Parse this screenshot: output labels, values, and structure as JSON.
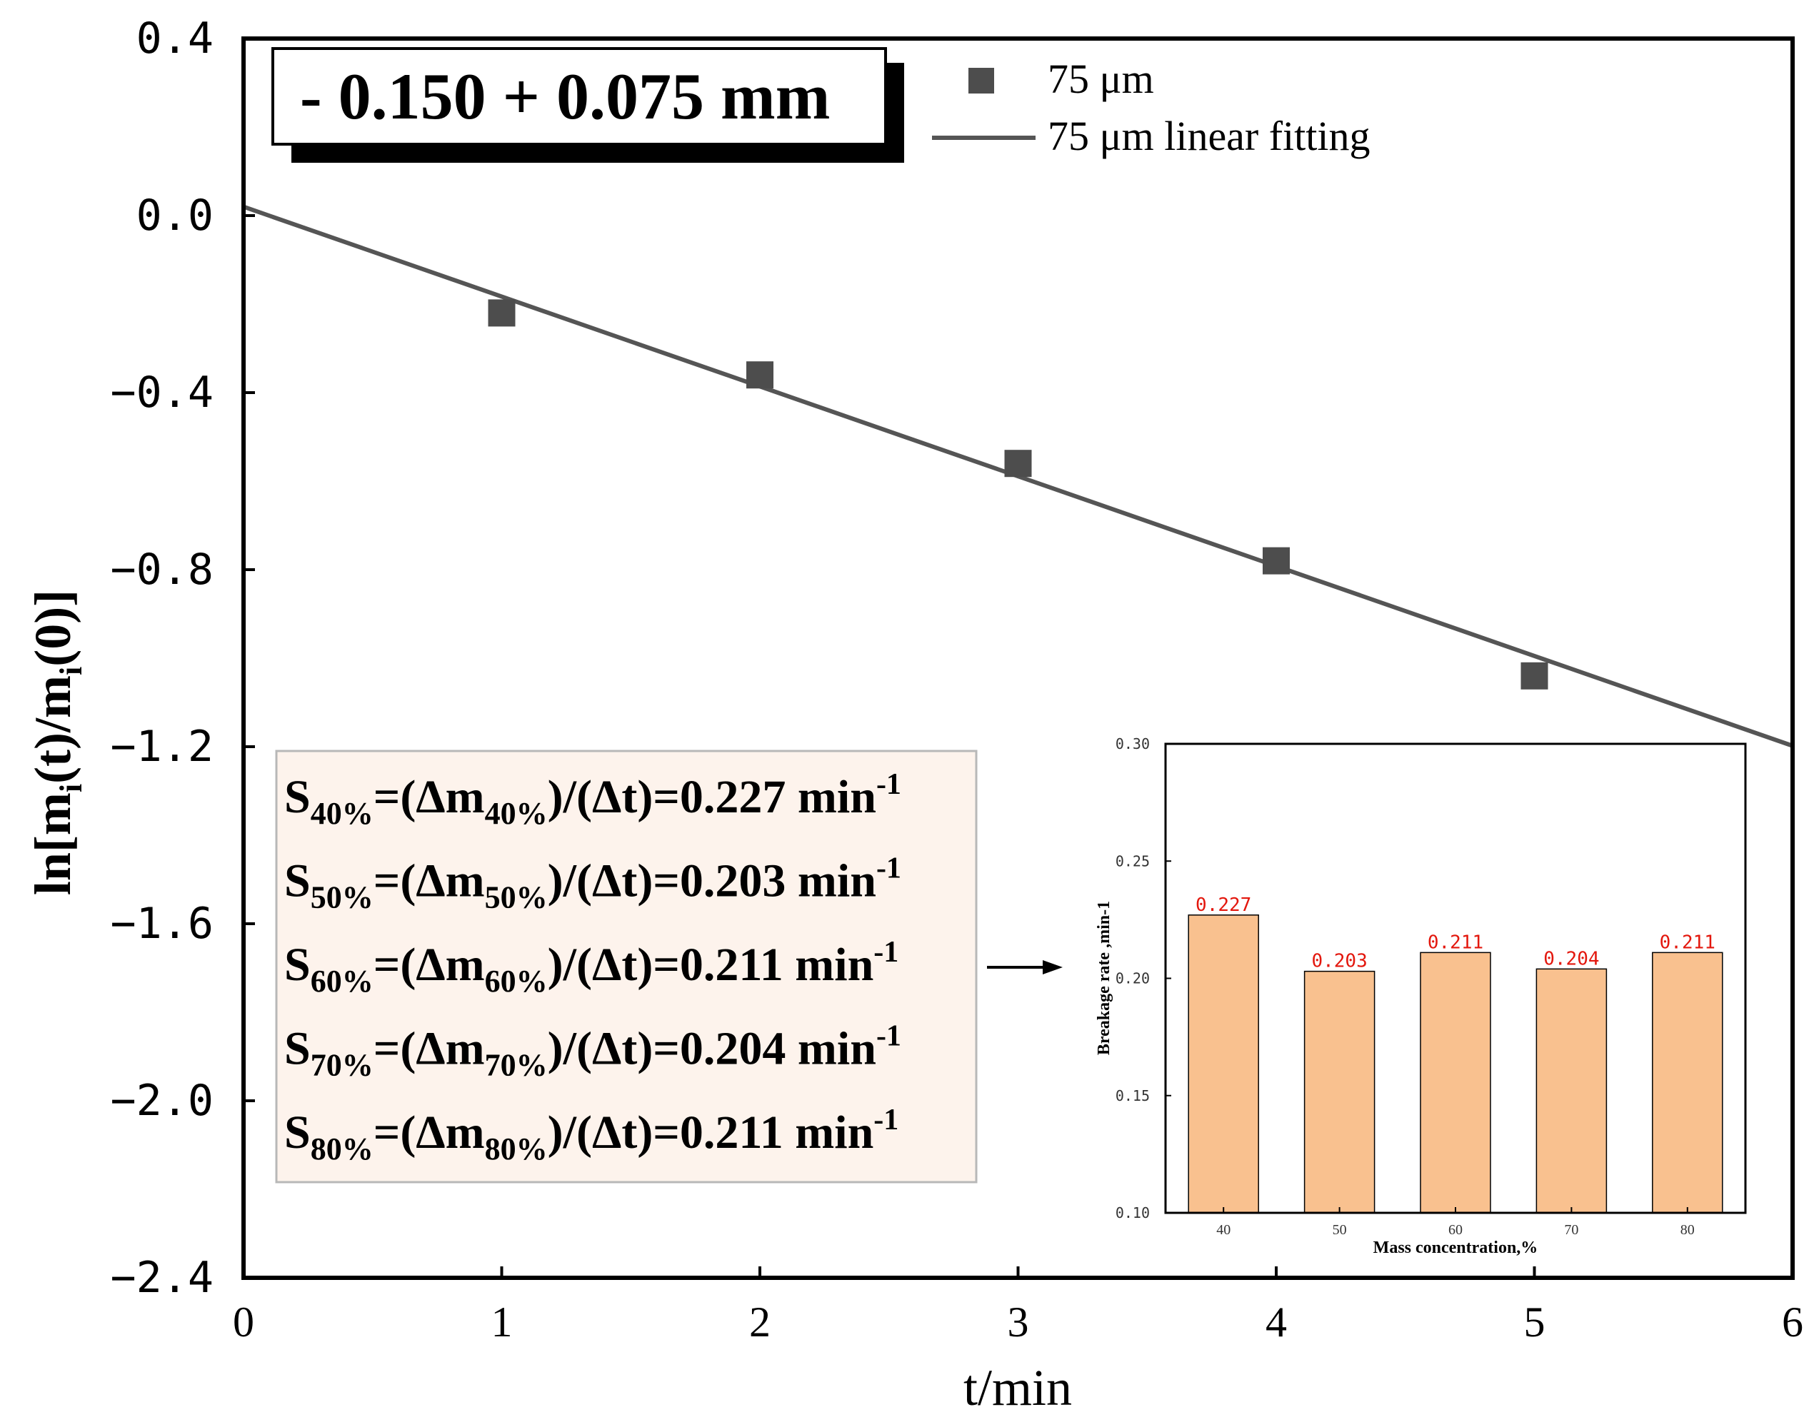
{
  "chart_data": [
    {
      "type": "scatter",
      "title": "- 0.150 + 0.075 mm",
      "xlabel": "t/min",
      "ylabel": "ln[m_i(t)/m_i(0)]",
      "xlim": [
        0,
        6
      ],
      "ylim": [
        -2.4,
        0.4
      ],
      "x_ticks": [
        "0",
        "1",
        "2",
        "3",
        "4",
        "5",
        "6"
      ],
      "y_ticks": [
        "0.4",
        "0.0",
        "−0.4",
        "−0.8",
        "−1.2",
        "−1.6",
        "−2.0",
        "−2.4"
      ],
      "series": [
        {
          "name": "75 μm",
          "kind": "scatter",
          "color": "#4d4d4d",
          "x": [
            1,
            2,
            3,
            4,
            5
          ],
          "y": [
            -0.22,
            -0.36,
            -0.56,
            -0.78,
            -1.04
          ]
        },
        {
          "name": "75 μm linear fitting",
          "kind": "line",
          "color": "#555555",
          "x": [
            0,
            6
          ],
          "y": [
            0.02,
            -1.198
          ]
        }
      ],
      "legend": {
        "position": "top-right",
        "entries": [
          "75 μm",
          "75 μm linear fitting"
        ]
      }
    },
    {
      "type": "bar",
      "title": "",
      "xlabel": "Mass concentration,%",
      "ylabel": "Breakage rate ,min-1",
      "categories": [
        "40",
        "50",
        "60",
        "70",
        "80"
      ],
      "values": [
        0.227,
        0.203,
        0.211,
        0.204,
        0.211
      ],
      "data_labels": [
        "0.227",
        "0.203",
        "0.211",
        "0.204",
        "0.211"
      ],
      "ylim": [
        0.1,
        0.3
      ],
      "y_ticks": [
        "0.30",
        "0.25",
        "0.20",
        "0.15",
        "0.10"
      ],
      "bar_color": "#f9c18f",
      "label_color": "#e3170d"
    }
  ],
  "equations": [
    {
      "pct": "40%",
      "value": "0.227",
      "unit": "min",
      "exp": "-1"
    },
    {
      "pct": "50%",
      "value": "0.203",
      "unit": "min",
      "exp": "-1"
    },
    {
      "pct": "60%",
      "value": "0.211",
      "unit": "min",
      "exp": "-1"
    },
    {
      "pct": "70%",
      "value": "0.204",
      "unit": "min",
      "exp": "-1"
    },
    {
      "pct": "80%",
      "value": "0.211",
      "unit": "min",
      "exp": "-1"
    }
  ],
  "colors": {
    "marker": "#4d4d4d",
    "fit_line": "#555555",
    "eq_box_bg": "#fdf3ec",
    "eq_box_border": "#b8b8b8"
  }
}
